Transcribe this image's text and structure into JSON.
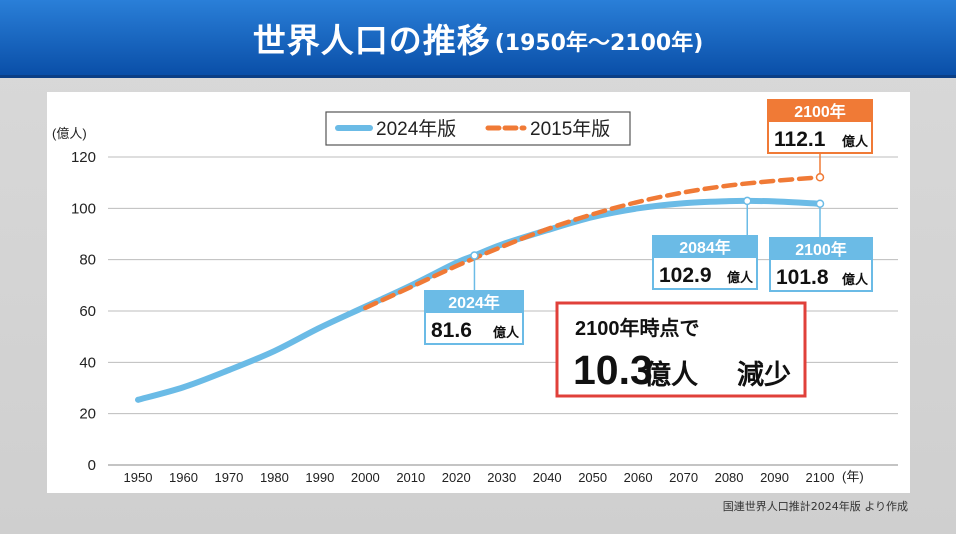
{
  "header": {
    "title": "世界人口の推移",
    "subtitle": "(1950年～2100年)"
  },
  "source": "国連世界人口推計2024年版 より作成",
  "colors": {
    "series_2024": "#6bbbe6",
    "series_2015": "#f07a36",
    "callout_red": "#e0403a",
    "header_blue": "#0a4fa8"
  },
  "callout": {
    "line1": "2100年時点で",
    "big_number": "10.3",
    "unit": "億人",
    "suffix": "減少"
  },
  "chart_data": {
    "type": "line",
    "title": "",
    "ylabel": "(億人)",
    "xlabel": "(年)",
    "ylim": [
      0,
      120
    ],
    "xlim": [
      1950,
      2100
    ],
    "yticks": [
      0,
      20,
      40,
      60,
      80,
      100,
      120
    ],
    "xticks": [
      1950,
      1960,
      1970,
      1980,
      1990,
      2000,
      2010,
      2020,
      2030,
      2040,
      2050,
      2060,
      2070,
      2080,
      2090,
      2100
    ],
    "grid": true,
    "legend_position": "top-center",
    "series": [
      {
        "name": "2024年版",
        "style": "solid",
        "x": [
          1950,
          1960,
          1970,
          1980,
          1990,
          2000,
          2010,
          2020,
          2024,
          2030,
          2040,
          2050,
          2060,
          2070,
          2080,
          2084,
          2090,
          2100
        ],
        "y": [
          25.4,
          30.3,
          37.0,
          44.4,
          53.5,
          61.7,
          69.9,
          78.8,
          81.6,
          85.9,
          91.5,
          96.6,
          100.0,
          102.0,
          102.8,
          102.9,
          102.7,
          101.8
        ]
      },
      {
        "name": "2015年版",
        "style": "dashed",
        "x": [
          2000,
          2010,
          2020,
          2030,
          2040,
          2050,
          2060,
          2070,
          2080,
          2090,
          2100
        ],
        "y": [
          61.2,
          69.3,
          77.5,
          85.0,
          91.9,
          97.7,
          102.5,
          106.2,
          108.9,
          110.7,
          112.1
        ]
      }
    ],
    "annotations": [
      {
        "year": "2024年",
        "value": "81.6",
        "unit": "億人",
        "series": "2024年版"
      },
      {
        "year": "2084年",
        "value": "102.9",
        "unit": "億人",
        "series": "2024年版"
      },
      {
        "year": "2100年",
        "value": "101.8",
        "unit": "億人",
        "series": "2024年版"
      },
      {
        "year": "2100年",
        "value": "112.1",
        "unit": "億人",
        "series": "2015年版"
      }
    ]
  }
}
